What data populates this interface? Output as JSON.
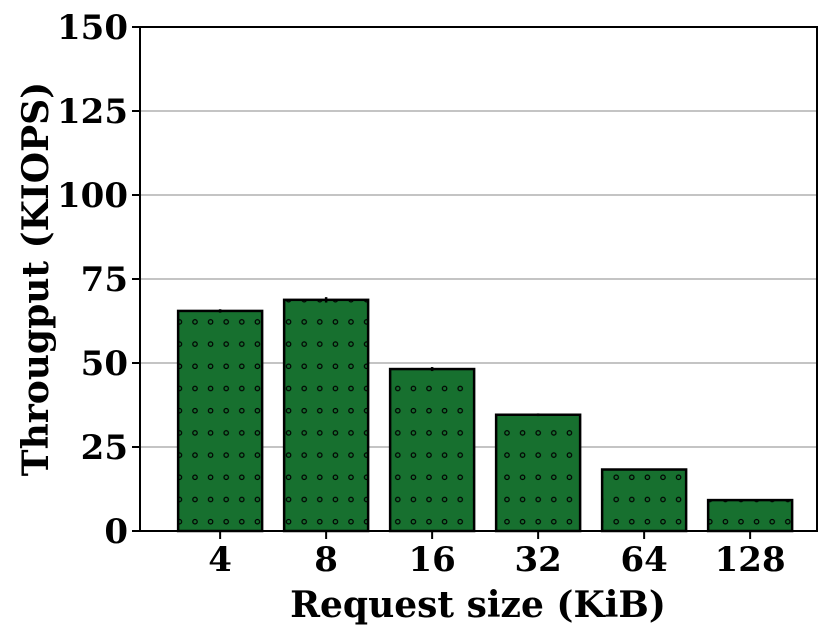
{
  "chart_data": {
    "type": "bar",
    "categories": [
      "4",
      "8",
      "16",
      "32",
      "64",
      "128"
    ],
    "values": [
      65.5,
      68.8,
      48.2,
      34.6,
      18.3,
      9.2
    ],
    "errors": [
      0.5,
      0.8,
      0.6,
      0.4,
      0.2,
      0.1
    ],
    "xlabel": "Request size (KiB)",
    "ylabel": "Througput (KIOPS)",
    "ylim": [
      0,
      150
    ],
    "yticks": [
      0,
      25,
      50,
      75,
      100,
      125,
      150
    ],
    "ytick_labels": [
      "0",
      "25",
      "50",
      "75",
      "100",
      "125",
      "150"
    ],
    "grid": "horizontal",
    "bar_color": "#17702f",
    "edge_color": "#000000",
    "hatch": "dots"
  }
}
